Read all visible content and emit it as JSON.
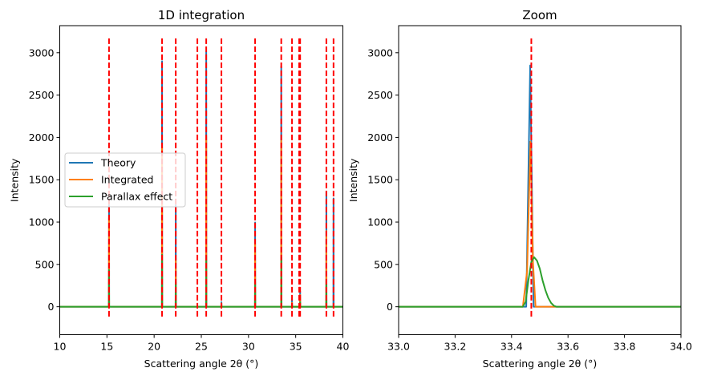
{
  "chart_data": [
    {
      "type": "line",
      "title": "1D integration",
      "xlabel": "Scattering angle 2θ (°)",
      "ylabel": "Intensity",
      "xlim": [
        10,
        40
      ],
      "ylim": [
        -330,
        3320
      ],
      "xticks": [
        10,
        15,
        20,
        25,
        30,
        35,
        40
      ],
      "yticks": [
        0,
        500,
        1000,
        1500,
        2000,
        2500,
        3000
      ],
      "legend": {
        "placement": "center-left",
        "entries": [
          "Theory",
          "Integrated",
          "Parallax effect"
        ]
      },
      "grid": false,
      "reference_lines": {
        "style": "dashed",
        "color": "#ff0000",
        "y_range": [
          -140,
          3170
        ],
        "x": [
          15.22,
          20.84,
          22.29,
          24.58,
          25.52,
          27.13,
          30.7,
          33.47,
          34.61,
          35.37,
          35.47,
          38.25,
          39.01
        ]
      },
      "series": [
        {
          "name": "Theory",
          "color": "#1f77b4",
          "peaks": [
            [
              15.22,
              1200
            ],
            [
              20.84,
              2900
            ],
            [
              22.29,
              1200
            ],
            [
              25.52,
              3010
            ],
            [
              27.13,
              55
            ],
            [
              30.7,
              995
            ],
            [
              33.47,
              2840
            ],
            [
              34.61,
              90
            ],
            [
              35.47,
              180
            ],
            [
              38.25,
              1360
            ],
            [
              39.01,
              1280
            ]
          ]
        },
        {
          "name": "Integrated",
          "color": "#ff7f0e",
          "peaks": [
            [
              15.22,
              1050
            ],
            [
              20.84,
              1890
            ],
            [
              22.29,
              575
            ],
            [
              25.52,
              2010
            ],
            [
              27.13,
              40
            ],
            [
              30.7,
              745
            ],
            [
              33.47,
              1960
            ],
            [
              34.61,
              47
            ],
            [
              35.47,
              140
            ],
            [
              38.25,
              895
            ]
          ]
        },
        {
          "name": "Parallax effect",
          "color": "#2ca02c",
          "peaks": [
            [
              15.22,
              435
            ],
            [
              20.84,
              615
            ],
            [
              22.29,
              290
            ],
            [
              25.52,
              600
            ],
            [
              27.13,
              15
            ],
            [
              30.7,
              290
            ],
            [
              33.48,
              585
            ],
            [
              34.61,
              25
            ],
            [
              35.47,
              55
            ],
            [
              38.25,
              262
            ]
          ]
        }
      ]
    },
    {
      "type": "line",
      "title": "Zoom",
      "xlabel": "Scattering angle 2θ (°)",
      "ylabel": "Intensity",
      "xlim": [
        33.0,
        34.0
      ],
      "ylim": [
        -330,
        3320
      ],
      "xticks": [
        33.0,
        33.2,
        33.4,
        33.6,
        33.8,
        34.0
      ],
      "yticks": [
        0,
        500,
        1000,
        1500,
        2000,
        2500,
        3000
      ],
      "grid": false,
      "reference_lines": {
        "style": "dashed",
        "color": "#ff0000",
        "y_range": [
          -140,
          3170
        ],
        "x": [
          33.47
        ]
      },
      "series": [
        {
          "name": "Theory",
          "color": "#1f77b4",
          "points": [
            [
              33.0,
              0
            ],
            [
              33.452,
              0
            ],
            [
              33.466,
              2850
            ],
            [
              33.478,
              0
            ],
            [
              34.0,
              0
            ]
          ]
        },
        {
          "name": "Integrated",
          "color": "#ff7f0e",
          "points": [
            [
              33.0,
              0
            ],
            [
              33.44,
              0
            ],
            [
              33.455,
              420
            ],
            [
              33.467,
              1950
            ],
            [
              33.476,
              520
            ],
            [
              33.485,
              0
            ],
            [
              34.0,
              0
            ]
          ]
        },
        {
          "name": "Parallax effect",
          "color": "#2ca02c",
          "points": [
            [
              33.0,
              0
            ],
            [
              33.44,
              0
            ],
            [
              33.45,
              60
            ],
            [
              33.46,
              320
            ],
            [
              33.47,
              530
            ],
            [
              33.48,
              585
            ],
            [
              33.49,
              545
            ],
            [
              33.5,
              450
            ],
            [
              33.51,
              310
            ],
            [
              33.52,
              195
            ],
            [
              33.53,
              105
            ],
            [
              33.54,
              45
            ],
            [
              33.55,
              12
            ],
            [
              33.56,
              0
            ],
            [
              34.0,
              0
            ]
          ]
        }
      ]
    }
  ]
}
